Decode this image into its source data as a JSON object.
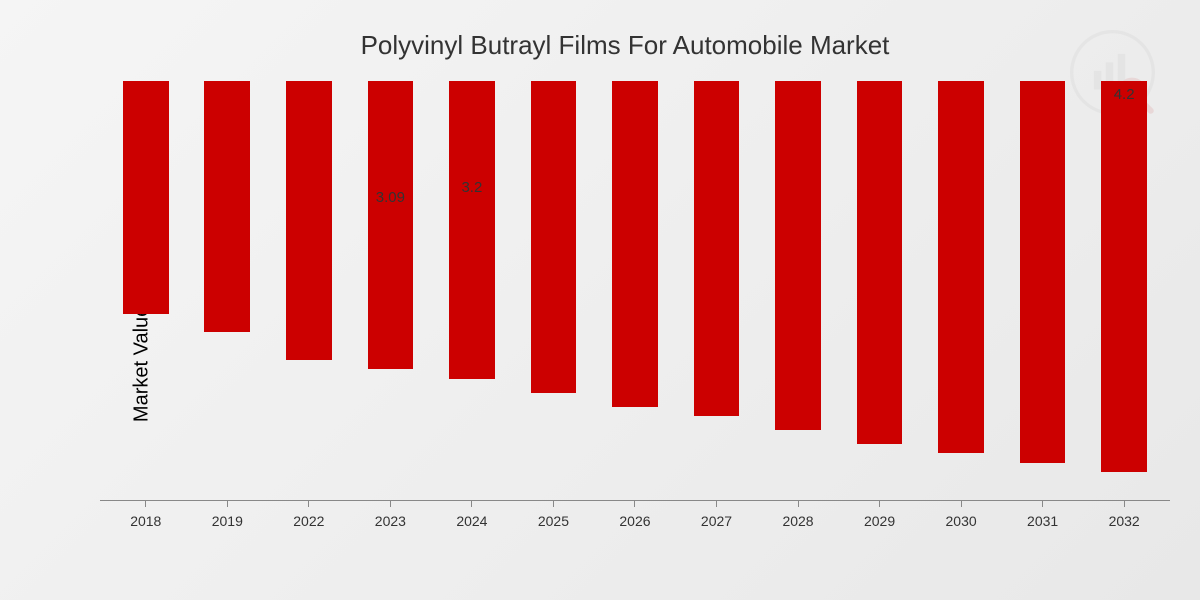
{
  "chart": {
    "type": "bar",
    "title": "Polyvinyl Butrayl  Films For Automobile Market",
    "title_fontsize": 26,
    "title_color": "#333333",
    "ylabel": "Market Value in USD Billion",
    "ylabel_fontsize": 20,
    "ylabel_color": "#000000",
    "background_gradient_start": "#f5f5f5",
    "background_gradient_end": "#e8e8e8",
    "axis_color": "#888888",
    "xtick_fontsize": 14,
    "xtick_color": "#333333",
    "bar_color": "#cc0000",
    "bar_width_pct": 56,
    "ylim": [
      0,
      4.5
    ],
    "categories": [
      "2018",
      "2019",
      "2022",
      "2023",
      "2024",
      "2025",
      "2026",
      "2027",
      "2028",
      "2029",
      "2030",
      "2031",
      "2032"
    ],
    "values": [
      2.5,
      2.7,
      3.0,
      3.09,
      3.2,
      3.35,
      3.5,
      3.6,
      3.75,
      3.9,
      4.0,
      4.1,
      4.2
    ],
    "visible_labels": {
      "3": "3.09",
      "4": "3.2",
      "12": "4.2"
    },
    "bar_label_fontsize": 15,
    "bar_label_color": "#333333"
  },
  "logo": {
    "opacity": 0.12,
    "primary_color": "#b0b0b0",
    "accent_color": "#cc4444"
  }
}
